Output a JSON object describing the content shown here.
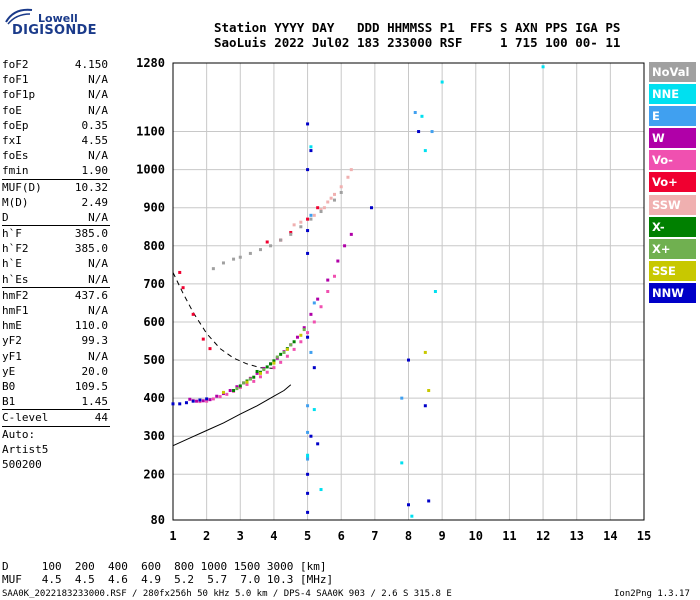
{
  "logo": {
    "line1": "Lowell",
    "line2": "DIGISONDE"
  },
  "header": {
    "line1": "Station YYYY DAY   DDD HHMMSS P1  FFS S AXN PPS IGA PS",
    "line2": "SaoLuis 2022 Jul02 183 233000 RSF     1 715 100 00- 11"
  },
  "parameters": [
    {
      "name": "foF2",
      "value": "4.150"
    },
    {
      "name": "foF1",
      "value": "N/A"
    },
    {
      "name": "foF1p",
      "value": "N/A"
    },
    {
      "name": "foE",
      "value": "N/A"
    },
    {
      "name": "foEp",
      "value": "0.35"
    },
    {
      "name": "fxI",
      "value": "4.55"
    },
    {
      "name": "foEs",
      "value": "N/A"
    },
    {
      "name": "fmin",
      "value": "1.90"
    },
    {
      "name": "MUF(D)",
      "value": "10.32",
      "sep": true
    },
    {
      "name": "M(D)",
      "value": "2.49"
    },
    {
      "name": "D",
      "value": "N/A"
    },
    {
      "name": "h`F",
      "value": "385.0",
      "sep": true
    },
    {
      "name": "h`F2",
      "value": "385.0"
    },
    {
      "name": "h`E",
      "value": "N/A"
    },
    {
      "name": "h`Es",
      "value": "N/A"
    },
    {
      "name": "hmF2",
      "value": "437.6",
      "sep": true
    },
    {
      "name": "hmF1",
      "value": "N/A"
    },
    {
      "name": "hmE",
      "value": "110.0"
    },
    {
      "name": "yF2",
      "value": "99.3"
    },
    {
      "name": "yF1",
      "value": "N/A"
    },
    {
      "name": "yE",
      "value": "20.0"
    },
    {
      "name": "B0",
      "value": "109.5"
    },
    {
      "name": "B1",
      "value": "1.45"
    },
    {
      "name": "C-level",
      "value": "44",
      "sep": true
    },
    {
      "name": "Auto:",
      "value": "",
      "sep": true
    },
    {
      "name": "Artist5",
      "value": ""
    },
    {
      "name": "500200",
      "value": ""
    }
  ],
  "legend": [
    {
      "label": "NoVal",
      "color": "#a0a0a0"
    },
    {
      "label": "NNE",
      "color": "#00e0f0"
    },
    {
      "label": "E",
      "color": "#40a0f0"
    },
    {
      "label": "W",
      "color": "#b000a8"
    },
    {
      "label": "Vo-",
      "color": "#f050b0"
    },
    {
      "label": "Vo+",
      "color": "#f00030"
    },
    {
      "label": "SSW",
      "color": "#f0b0b0"
    },
    {
      "label": "X-",
      "color": "#008000"
    },
    {
      "label": "X+",
      "color": "#70b050"
    },
    {
      "label": "SSE",
      "color": "#c8c800"
    },
    {
      "label": "NNW",
      "color": "#0000c8"
    }
  ],
  "bottom": {
    "d_line": "D     100  200  400  600  800 1000 1500 3000 [km]",
    "muf_line": "MUF   4.5  4.5  4.6  4.9  5.2  5.7  7.0 10.3 [MHz]",
    "footer_left": "SAA0K_2022183233000.RSF / 280fx256h 50 kHz 5.0 km / DPS-4 SAA0K 903 / 2.6 S 315.8 E",
    "footer_right": "Ion2Png 1.3.17"
  },
  "chart_data": {
    "type": "scatter",
    "title": "",
    "xlabel": "",
    "ylabel": "",
    "xlim": [
      1,
      15
    ],
    "ylim": [
      80,
      1280
    ],
    "x_ticks": [
      1,
      2,
      3,
      4,
      5,
      6,
      7,
      8,
      9,
      10,
      11,
      12,
      13,
      14,
      15
    ],
    "y_ticks": [
      80,
      200,
      300,
      400,
      500,
      600,
      700,
      800,
      900,
      1000,
      1100,
      1280
    ],
    "grid": true,
    "series": [
      {
        "name": "W",
        "color": "#b000a8",
        "points": [
          [
            1.5,
            397
          ],
          [
            1.7,
            392
          ],
          [
            1.9,
            393
          ],
          [
            2.1,
            396
          ],
          [
            2.3,
            405
          ],
          [
            2.5,
            412
          ],
          [
            2.7,
            420
          ],
          [
            2.9,
            430
          ],
          [
            3.1,
            440
          ],
          [
            3.3,
            452
          ],
          [
            3.5,
            465
          ],
          [
            3.7,
            478
          ],
          [
            3.9,
            490
          ],
          [
            4.1,
            505
          ],
          [
            4.3,
            522
          ],
          [
            4.5,
            540
          ],
          [
            4.7,
            560
          ],
          [
            4.9,
            585
          ],
          [
            5.1,
            620
          ],
          [
            5.3,
            660
          ],
          [
            5.6,
            710
          ],
          [
            5.9,
            760
          ],
          [
            6.1,
            800
          ],
          [
            6.3,
            830
          ]
        ]
      },
      {
        "name": "Vo-",
        "color": "#f050b0",
        "points": [
          [
            1.6,
            394
          ],
          [
            1.8,
            391
          ],
          [
            2.0,
            392
          ],
          [
            2.2,
            398
          ],
          [
            2.4,
            404
          ],
          [
            2.6,
            410
          ],
          [
            2.8,
            418
          ],
          [
            3.0,
            428
          ],
          [
            3.2,
            436
          ],
          [
            3.4,
            444
          ],
          [
            3.6,
            456
          ],
          [
            3.8,
            468
          ],
          [
            4.0,
            480
          ],
          [
            4.2,
            494
          ],
          [
            4.4,
            510
          ],
          [
            4.6,
            528
          ],
          [
            4.8,
            548
          ],
          [
            5.0,
            572
          ],
          [
            5.2,
            600
          ],
          [
            5.4,
            640
          ],
          [
            5.6,
            680
          ],
          [
            5.8,
            720
          ]
        ]
      },
      {
        "name": "SSW",
        "color": "#f0b0b0",
        "points": [
          [
            4.6,
            855
          ],
          [
            4.8,
            862
          ],
          [
            5.0,
            870
          ],
          [
            5.2,
            880
          ],
          [
            5.4,
            895
          ],
          [
            5.6,
            915
          ],
          [
            5.8,
            935
          ],
          [
            6.0,
            955
          ],
          [
            6.2,
            980
          ],
          [
            6.3,
            1000
          ],
          [
            5.5,
            900
          ],
          [
            5.7,
            925
          ]
        ]
      },
      {
        "name": "X-",
        "color": "#008000",
        "points": [
          [
            2.8,
            420
          ],
          [
            3.0,
            432
          ],
          [
            3.2,
            445
          ],
          [
            3.4,
            455
          ],
          [
            3.6,
            468
          ],
          [
            3.8,
            482
          ],
          [
            4.0,
            498
          ],
          [
            4.2,
            515
          ],
          [
            4.4,
            530
          ],
          [
            4.6,
            548
          ],
          [
            3.5,
            470
          ],
          [
            3.9,
            490
          ]
        ]
      },
      {
        "name": "X+",
        "color": "#70b050",
        "points": [
          [
            3.1,
            440
          ],
          [
            3.3,
            450
          ],
          [
            3.7,
            475
          ],
          [
            4.1,
            508
          ],
          [
            4.5,
            540
          ],
          [
            4.9,
            580
          ],
          [
            2.9,
            425
          ],
          [
            4.3,
            520
          ]
        ]
      },
      {
        "name": "SSE",
        "color": "#c8c800",
        "points": [
          [
            2.5,
            415
          ],
          [
            3.2,
            442
          ],
          [
            3.6,
            465
          ],
          [
            4.0,
            492
          ],
          [
            4.4,
            528
          ],
          [
            4.8,
            565
          ],
          [
            8.5,
            520
          ],
          [
            8.6,
            420
          ]
        ]
      },
      {
        "name": "NNW",
        "color": "#0000c8",
        "points": [
          [
            1.0,
            385
          ],
          [
            1.2,
            385
          ],
          [
            1.4,
            388
          ],
          [
            1.6,
            392
          ],
          [
            1.8,
            395
          ],
          [
            2.0,
            398
          ],
          [
            5.0,
            840
          ],
          [
            5.0,
            780
          ],
          [
            5.0,
            560
          ],
          [
            5.1,
            1050
          ],
          [
            5.0,
            1000
          ],
          [
            5.0,
            200
          ],
          [
            5.0,
            150
          ],
          [
            5.0,
            100
          ],
          [
            5.1,
            300
          ],
          [
            5.0,
            1120
          ],
          [
            6.9,
            900
          ],
          [
            8.0,
            120
          ],
          [
            8.0,
            500
          ],
          [
            8.3,
            1100
          ],
          [
            8.5,
            380
          ],
          [
            5.3,
            280
          ],
          [
            5.2,
            480
          ],
          [
            8.6,
            130
          ]
        ]
      },
      {
        "name": "NNE",
        "color": "#00e0f0",
        "points": [
          [
            5.0,
            245
          ],
          [
            5.0,
            250
          ],
          [
            5.2,
            370
          ],
          [
            5.1,
            1060
          ],
          [
            7.8,
            230
          ],
          [
            8.1,
            90
          ],
          [
            8.5,
            1050
          ],
          [
            8.8,
            680
          ],
          [
            9.0,
            1230
          ],
          [
            12.0,
            1270
          ],
          [
            8.4,
            1140
          ],
          [
            5.4,
            160
          ]
        ]
      },
      {
        "name": "E",
        "color": "#40a0f0",
        "points": [
          [
            5.0,
            240
          ],
          [
            5.0,
            310
          ],
          [
            5.0,
            380
          ],
          [
            5.1,
            520
          ],
          [
            5.2,
            650
          ],
          [
            8.2,
            1150
          ],
          [
            8.7,
            1100
          ],
          [
            5.1,
            880
          ],
          [
            7.8,
            400
          ]
        ]
      },
      {
        "name": "Vo+",
        "color": "#f00030",
        "points": [
          [
            1.2,
            730
          ],
          [
            1.3,
            690
          ],
          [
            1.6,
            620
          ],
          [
            1.9,
            555
          ],
          [
            2.1,
            530
          ],
          [
            4.2,
            815
          ],
          [
            4.5,
            835
          ],
          [
            5.0,
            870
          ],
          [
            3.8,
            810
          ],
          [
            5.3,
            900
          ]
        ]
      },
      {
        "name": "NoVal",
        "color": "#a0a0a0",
        "points": [
          [
            2.2,
            740
          ],
          [
            2.5,
            755
          ],
          [
            2.8,
            765
          ],
          [
            3.0,
            770
          ],
          [
            3.3,
            780
          ],
          [
            3.6,
            790
          ],
          [
            3.9,
            800
          ],
          [
            4.2,
            815
          ],
          [
            4.5,
            830
          ],
          [
            4.8,
            850
          ],
          [
            5.1,
            870
          ],
          [
            5.4,
            890
          ],
          [
            5.8,
            920
          ],
          [
            6.0,
            940
          ]
        ]
      }
    ],
    "curves": [
      {
        "name": "",
        "style": "solid",
        "points": [
          [
            1.0,
            275
          ],
          [
            1.5,
            295
          ],
          [
            2.0,
            315
          ],
          [
            2.5,
            335
          ],
          [
            3.0,
            358
          ],
          [
            3.5,
            380
          ],
          [
            4.0,
            405
          ],
          [
            4.3,
            420
          ],
          [
            4.5,
            435
          ]
        ]
      },
      {
        "name": "",
        "style": "dashed",
        "points": [
          [
            1.0,
            730
          ],
          [
            1.3,
            675
          ],
          [
            1.6,
            625
          ],
          [
            2.0,
            570
          ],
          [
            2.4,
            530
          ],
          [
            2.8,
            505
          ],
          [
            3.2,
            490
          ],
          [
            3.6,
            480
          ],
          [
            4.0,
            478
          ]
        ]
      }
    ]
  }
}
